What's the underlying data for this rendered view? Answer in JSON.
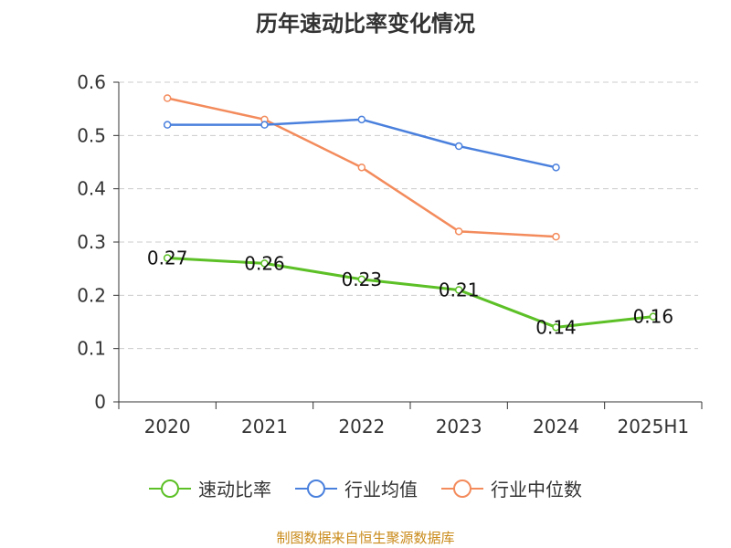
{
  "title": "历年速动比率变化情况",
  "source": "制图数据来自恒生聚源数据库",
  "chart_data": {
    "type": "line",
    "categories": [
      "2020",
      "2021",
      "2022",
      "2023",
      "2024",
      "2025H1"
    ],
    "yticks": [
      "0",
      "0.1",
      "0.2",
      "0.3",
      "0.4",
      "0.5",
      "0.6"
    ],
    "ylim": [
      0,
      0.6
    ],
    "grid": true,
    "legend_position": "bottom",
    "series": [
      {
        "name": "速动比率",
        "color": "#5cc026",
        "values": [
          0.27,
          0.26,
          0.23,
          0.21,
          0.14,
          0.16
        ],
        "labels": [
          "0.27",
          "0.26",
          "0.23",
          "0.21",
          "0.14",
          "0.16"
        ]
      },
      {
        "name": "行业均值",
        "color": "#4a80dd",
        "values": [
          0.52,
          0.52,
          0.53,
          0.48,
          0.44,
          null
        ]
      },
      {
        "name": "行业中位数",
        "color": "#f38b5c",
        "values": [
          0.57,
          0.53,
          0.44,
          0.32,
          0.31,
          null
        ]
      }
    ]
  }
}
